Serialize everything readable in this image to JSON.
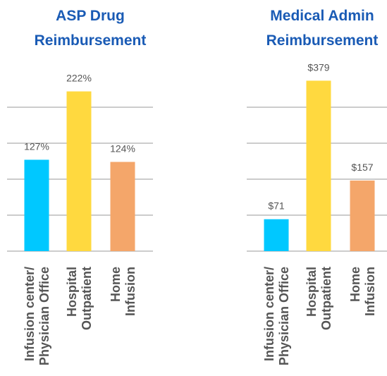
{
  "chart_data": [
    {
      "type": "bar",
      "title": [
        "ASP Drug",
        "Reimbursement"
      ],
      "categories": [
        [
          "Infusion center/",
          "Physician Office"
        ],
        [
          "Hospital",
          "Outpatient"
        ],
        [
          "Home",
          "Infusion"
        ]
      ],
      "values": [
        127,
        222,
        124
      ],
      "value_labels": [
        "127%",
        "222%",
        "124%"
      ],
      "colors": [
        "#00c8ff",
        "#ffd93f",
        "#f4a66a"
      ],
      "ylim": [
        0,
        250
      ],
      "yticks": [
        0,
        50,
        100,
        150,
        200
      ],
      "grid": true
    },
    {
      "type": "bar",
      "title": [
        "Medical Admin",
        "Reimbursement"
      ],
      "categories": [
        [
          "Infusion center/",
          "Physician Office"
        ],
        [
          "Hospital",
          "Outpatient"
        ],
        [
          "Home",
          "Infusion"
        ]
      ],
      "values": [
        71,
        379,
        157
      ],
      "value_labels": [
        "$71",
        "$379",
        "$157"
      ],
      "colors": [
        "#00c8ff",
        "#ffd93f",
        "#f4a66a"
      ],
      "ylim": [
        0,
        400
      ],
      "yticks": [
        0,
        80,
        160,
        240,
        320
      ],
      "grid": true
    }
  ]
}
